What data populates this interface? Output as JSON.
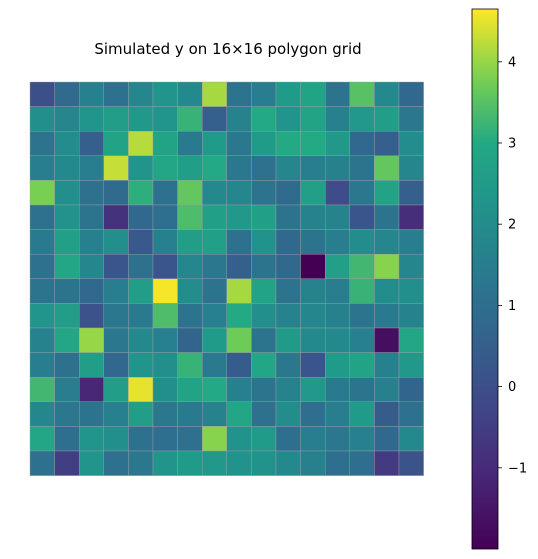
{
  "chart_data": {
    "type": "heatmap",
    "title": "Simulated y on 16×16 polygon grid",
    "rows": 16,
    "cols": 16,
    "colormap": "viridis",
    "value_range": [
      -2.0,
      4.65
    ],
    "colorbar_ticks": [
      -1,
      0,
      1,
      2,
      3,
      4
    ],
    "colorbar_tick_labels": [
      "−1",
      "0",
      "1",
      "2",
      "3",
      "4"
    ],
    "axes_visible": false,
    "cell_edge_color": "#9aa0a6",
    "values": [
      [
        0.0,
        0.9,
        1.6,
        1.1,
        1.8,
        2.3,
        1.9,
        4.1,
        1.2,
        1.5,
        2.5,
        2.8,
        1.2,
        3.5,
        1.9,
        0.8
      ],
      [
        2.1,
        1.8,
        2.3,
        2.6,
        2.4,
        2.3,
        3.2,
        0.5,
        1.7,
        3.0,
        2.3,
        2.8,
        1.6,
        2.4,
        2.6,
        1.3
      ],
      [
        1.2,
        2.0,
        0.5,
        2.8,
        4.2,
        2.8,
        1.4,
        2.5,
        1.3,
        2.5,
        3.0,
        3.0,
        2.4,
        0.8,
        0.5,
        2.0
      ],
      [
        1.5,
        1.9,
        1.5,
        4.3,
        2.3,
        2.9,
        2.6,
        3.0,
        1.3,
        1.1,
        1.8,
        1.5,
        1.6,
        1.2,
        3.6,
        1.8
      ],
      [
        3.8,
        2.1,
        1.1,
        0.9,
        3.1,
        1.1,
        3.6,
        1.9,
        1.8,
        1.2,
        0.9,
        2.7,
        -0.1,
        1.3,
        2.8,
        0.5
      ],
      [
        1.1,
        2.2,
        1.2,
        -0.8,
        0.8,
        1.0,
        3.4,
        2.7,
        2.4,
        2.7,
        1.2,
        1.7,
        1.7,
        0.2,
        1.2,
        -0.9
      ],
      [
        1.4,
        2.7,
        1.6,
        2.1,
        0.3,
        1.6,
        2.6,
        2.7,
        1.1,
        2.2,
        0.8,
        1.2,
        1.5,
        2.0,
        1.8,
        1.5
      ],
      [
        1.1,
        2.9,
        1.8,
        0.2,
        1.1,
        0.2,
        1.8,
        1.3,
        0.5,
        1.2,
        0.8,
        -2.0,
        2.7,
        3.3,
        3.9,
        1.8
      ],
      [
        1.2,
        1.2,
        0.8,
        1.5,
        2.6,
        4.6,
        2.0,
        1.2,
        4.1,
        2.8,
        1.2,
        1.7,
        1.5,
        3.2,
        2.0,
        2.1
      ],
      [
        2.3,
        2.6,
        0.1,
        1.3,
        1.4,
        3.4,
        1.2,
        1.6,
        3.0,
        2.1,
        1.7,
        1.8,
        1.6,
        1.2,
        1.4,
        1.7
      ],
      [
        1.7,
        2.9,
        4.0,
        1.3,
        1.9,
        1.6,
        0.7,
        2.5,
        3.7,
        1.2,
        2.5,
        1.9,
        1.9,
        1.6,
        -1.7,
        2.9
      ],
      [
        1.5,
        1.1,
        2.6,
        0.8,
        2.3,
        2.1,
        3.2,
        1.4,
        0.4,
        2.9,
        1.3,
        0.2,
        2.5,
        2.8,
        1.6,
        2.4
      ],
      [
        3.3,
        1.5,
        -1.1,
        2.6,
        4.5,
        2.1,
        2.8,
        3.0,
        1.6,
        1.2,
        1.7,
        2.4,
        1.4,
        1.2,
        1.6,
        0.7
      ],
      [
        1.8,
        1.3,
        1.2,
        1.6,
        2.6,
        1.3,
        1.4,
        1.7,
        2.9,
        1.1,
        2.0,
        1.0,
        1.5,
        2.5,
        0.4,
        1.1
      ],
      [
        2.9,
        1.0,
        2.3,
        2.1,
        1.1,
        1.0,
        1.1,
        3.9,
        2.2,
        2.5,
        1.0,
        1.5,
        1.3,
        1.6,
        0.8,
        1.9
      ],
      [
        1.1,
        -0.5,
        2.3,
        1.1,
        1.3,
        2.3,
        2.5,
        2.4,
        2.2,
        2.2,
        1.9,
        1.6,
        1.0,
        1.0,
        -0.6,
        0.1
      ]
    ]
  }
}
